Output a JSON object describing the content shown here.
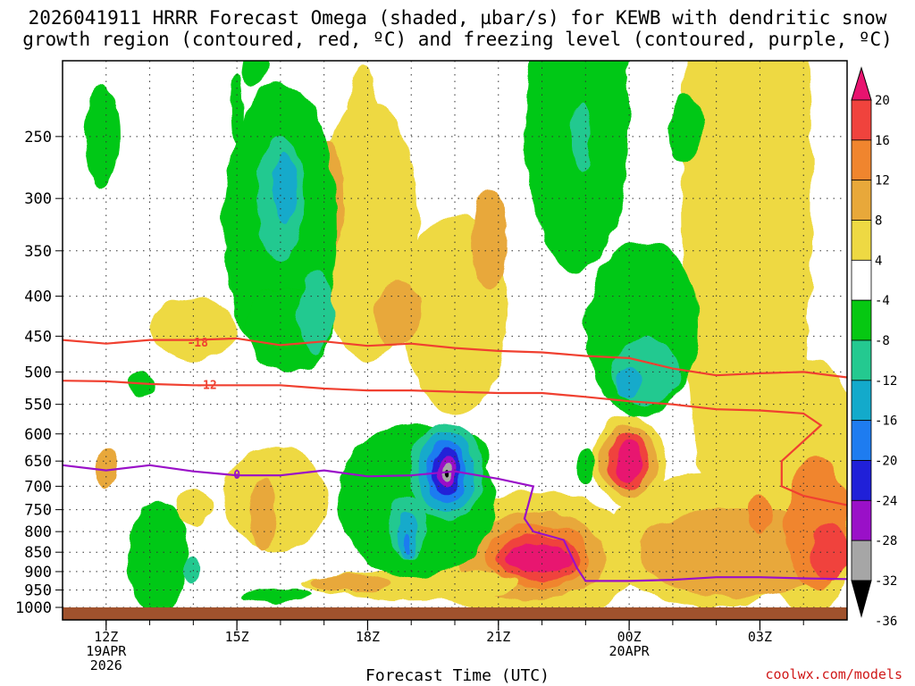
{
  "title_line1": "2026041911 HRRR Forecast Omega (shaded, µbar/s) for KEWB with dendritic snow",
  "title_line2": "growth region (contoured, red, ºC) and freezing level (contoured, purple, ºC)",
  "credit": "coolwx.com/models",
  "chart_data": {
    "type": "heatmap",
    "xlabel": "Forecast Time (UTC)",
    "ylabel": "",
    "y_axis": "pressure (mb), inverted",
    "ylim": [
      1000,
      200
    ],
    "xlim_hours": [
      -1,
      17
    ],
    "y_ticks": [
      250,
      300,
      350,
      400,
      450,
      500,
      550,
      600,
      650,
      700,
      750,
      800,
      850,
      900,
      950,
      1000
    ],
    "x_ticks": [
      {
        "hour": 0,
        "lines": [
          "12Z",
          "19APR",
          "2026"
        ]
      },
      {
        "hour": 3,
        "lines": [
          "15Z"
        ]
      },
      {
        "hour": 6,
        "lines": [
          "18Z"
        ]
      },
      {
        "hour": 9,
        "lines": [
          "21Z"
        ]
      },
      {
        "hour": 12,
        "lines": [
          "00Z",
          "20APR"
        ]
      },
      {
        "hour": 15,
        "lines": [
          "03Z"
        ]
      }
    ],
    "grid": true,
    "colorbar": {
      "labels": [
        "20",
        "16",
        "12",
        "8",
        "4",
        "-4",
        "-8",
        "-12",
        "-16",
        "-20",
        "-24",
        "-28",
        "-32",
        "-36"
      ],
      "bins_top_to_bottom": [
        {
          "color": "#e8136f"
        },
        {
          "color": "#f0433d"
        },
        {
          "color": "#f0852e"
        },
        {
          "color": "#e8a83a"
        },
        {
          "color": "#eed943"
        },
        {
          "color": "#ffffff"
        },
        {
          "color": "#06c812"
        },
        {
          "color": "#24c990"
        },
        {
          "color": "#13aacb"
        },
        {
          "color": "#1e7cf0"
        },
        {
          "color": "#2020d8"
        },
        {
          "color": "#9a10c8"
        },
        {
          "color": "#a6a6a6"
        },
        {
          "color": "#000000"
        }
      ]
    },
    "omega_regions": [
      {
        "level": "-8",
        "color": "#06c812",
        "center": [
          -0.1,
          250
        ],
        "rx": 0.4,
        "ry": 38
      },
      {
        "level": "-8",
        "color": "#06c812",
        "center": [
          3.0,
          230
        ],
        "rx": 0.15,
        "ry": 25
      },
      {
        "level": "-8",
        "color": "#06c812",
        "center": [
          3.4,
          205
        ],
        "rx": 0.3,
        "ry": 10
      },
      {
        "level": "-8",
        "color": "#06c812",
        "center": [
          4.0,
          325
        ],
        "rx": 1.3,
        "ry": 130
      },
      {
        "level": "-8",
        "color": "#06c812",
        "center": [
          4.2,
          440
        ],
        "rx": 1.0,
        "ry": 55
      },
      {
        "level": "-12",
        "color": "#24c990",
        "center": [
          4.0,
          300
        ],
        "rx": 0.55,
        "ry": 55
      },
      {
        "level": "-16",
        "color": "#13aacb",
        "center": [
          4.1,
          290
        ],
        "rx": 0.25,
        "ry": 30
      },
      {
        "level": "-12",
        "color": "#24c990",
        "center": [
          4.8,
          420
        ],
        "rx": 0.4,
        "ry": 50
      },
      {
        "level": "-8",
        "color": "#06c812",
        "center": [
          0.8,
          518
        ],
        "rx": 0.3,
        "ry": 22
      },
      {
        "level": "-8",
        "color": "#06c812",
        "center": [
          1.2,
          860
        ],
        "rx": 0.7,
        "ry": 140
      },
      {
        "level": "-12",
        "color": "#24c990",
        "center": [
          2.0,
          895
        ],
        "rx": 0.15,
        "ry": 40
      },
      {
        "level": "-8",
        "color": "#06c812",
        "center": [
          10.8,
          240
        ],
        "rx": 1.2,
        "ry": 100
      },
      {
        "level": "-12",
        "color": "#24c990",
        "center": [
          10.9,
          250
        ],
        "rx": 0.2,
        "ry": 25
      },
      {
        "level": "-8",
        "color": "#06c812",
        "center": [
          12.3,
          440
        ],
        "rx": 1.3,
        "ry": 110
      },
      {
        "level": "-12",
        "color": "#24c990",
        "center": [
          12.4,
          500
        ],
        "rx": 0.8,
        "ry": 50
      },
      {
        "level": "-16",
        "color": "#13aacb",
        "center": [
          12.0,
          515
        ],
        "rx": 0.3,
        "ry": 25
      },
      {
        "level": "-8",
        "color": "#06c812",
        "center": [
          13.3,
          245
        ],
        "rx": 0.4,
        "ry": 25
      },
      {
        "level": "-8",
        "color": "#06c812",
        "center": [
          7.1,
          730
        ],
        "rx": 1.8,
        "ry": 165
      },
      {
        "level": "-8",
        "color": "#06c812",
        "center": [
          8.3,
          640
        ],
        "rx": 0.5,
        "ry": 40
      },
      {
        "level": "-12",
        "color": "#24c990",
        "center": [
          6.9,
          790
        ],
        "rx": 0.45,
        "ry": 75
      },
      {
        "level": "-16",
        "color": "#13aacb",
        "center": [
          6.9,
          810
        ],
        "rx": 0.25,
        "ry": 55
      },
      {
        "level": "-20",
        "color": "#1e7cf0",
        "center": [
          6.9,
          830
        ],
        "rx": 0.08,
        "ry": 25
      },
      {
        "level": "-12",
        "color": "#24c990",
        "center": [
          7.8,
          670
        ],
        "rx": 0.85,
        "ry": 100
      },
      {
        "level": "-16",
        "color": "#13aacb",
        "center": [
          7.8,
          670
        ],
        "rx": 0.65,
        "ry": 80
      },
      {
        "level": "-20",
        "color": "#1e7cf0",
        "center": [
          7.8,
          670
        ],
        "rx": 0.45,
        "ry": 60
      },
      {
        "level": "-24",
        "color": "#2020d8",
        "center": [
          7.8,
          670
        ],
        "rx": 0.32,
        "ry": 45
      },
      {
        "level": "-28",
        "color": "#9a10c8",
        "center": [
          7.8,
          670
        ],
        "rx": 0.22,
        "ry": 32
      },
      {
        "level": "-32",
        "color": "#a6a6a6",
        "center": [
          7.8,
          670
        ],
        "rx": 0.13,
        "ry": 20
      },
      {
        "level": "-36",
        "color": "#000000",
        "center": [
          7.8,
          670
        ],
        "rx": 0.06,
        "ry": 8
      },
      {
        "level": "-8",
        "color": "#06c812",
        "center": [
          11.0,
          660
        ],
        "rx": 0.25,
        "ry": 35
      },
      {
        "level": "-8",
        "color": "#06c812",
        "center": [
          3.9,
          965
        ],
        "rx": 0.8,
        "ry": 18
      }
    ],
    "rising_regions": [
      {
        "level": "4",
        "color": "#eed943",
        "center": [
          6.0,
          330
        ],
        "rx": 1.2,
        "ry": 120
      },
      {
        "level": "4",
        "color": "#eed943",
        "center": [
          8.0,
          420
        ],
        "rx": 1.2,
        "ry": 120
      },
      {
        "level": "4",
        "color": "#eed943",
        "center": [
          5.9,
          230
        ],
        "rx": 0.3,
        "ry": 30
      },
      {
        "level": "8",
        "color": "#e8a83a",
        "center": [
          5.1,
          300
        ],
        "rx": 0.35,
        "ry": 50
      },
      {
        "level": "12",
        "color": "#f0852e",
        "center": [
          5.0,
          295
        ],
        "rx": 0.1,
        "ry": 25
      },
      {
        "level": "8",
        "color": "#e8a83a",
        "center": [
          8.8,
          340
        ],
        "rx": 0.4,
        "ry": 50
      },
      {
        "level": "8",
        "color": "#e8a83a",
        "center": [
          6.7,
          420
        ],
        "rx": 0.55,
        "ry": 40
      },
      {
        "level": "4",
        "color": "#eed943",
        "center": [
          2.0,
          440
        ],
        "rx": 1.0,
        "ry": 40
      },
      {
        "level": "4",
        "color": "#eed943",
        "center": [
          3.9,
          725
        ],
        "rx": 1.2,
        "ry": 110
      },
      {
        "level": "8",
        "color": "#e8a83a",
        "center": [
          3.6,
          760
        ],
        "rx": 0.3,
        "ry": 80
      },
      {
        "level": "4",
        "color": "#eed943",
        "center": [
          2.0,
          745
        ],
        "rx": 0.4,
        "ry": 40
      },
      {
        "level": "4",
        "color": "#eed943",
        "center": [
          14.7,
          300
        ],
        "rx": 1.5,
        "ry": 250
      },
      {
        "level": "4",
        "color": "#eed943",
        "center": [
          16.1,
          700
        ],
        "rx": 1.3,
        "ry": 250
      },
      {
        "level": "4",
        "color": "#eed943",
        "center": [
          13.8,
          820
        ],
        "rx": 2.3,
        "ry": 160
      },
      {
        "level": "8",
        "color": "#e8a83a",
        "center": [
          14.5,
          850
        ],
        "rx": 2.3,
        "ry": 110
      },
      {
        "level": "12",
        "color": "#f0852e",
        "center": [
          16.3,
          780
        ],
        "rx": 0.7,
        "ry": 150
      },
      {
        "level": "12",
        "color": "#f0852e",
        "center": [
          15.0,
          760
        ],
        "rx": 0.3,
        "ry": 40
      },
      {
        "level": "16",
        "color": "#f0433d",
        "center": [
          16.6,
          850
        ],
        "rx": 0.45,
        "ry": 70
      },
      {
        "level": "4",
        "color": "#eed943",
        "center": [
          9.8,
          860
        ],
        "rx": 2.5,
        "ry": 160
      },
      {
        "level": "8",
        "color": "#e8a83a",
        "center": [
          9.8,
          860
        ],
        "rx": 1.7,
        "ry": 110
      },
      {
        "level": "12",
        "color": "#f0852e",
        "center": [
          9.9,
          860
        ],
        "rx": 1.2,
        "ry": 80
      },
      {
        "level": "16",
        "color": "#f0433d",
        "center": [
          9.9,
          865
        ],
        "rx": 0.95,
        "ry": 60
      },
      {
        "level": "20",
        "color": "#e8136f",
        "center": [
          9.9,
          865
        ],
        "rx": 0.75,
        "ry": 42
      },
      {
        "level": "4",
        "color": "#eed943",
        "center": [
          12.0,
          650
        ],
        "rx": 0.85,
        "ry": 90
      },
      {
        "level": "8",
        "color": "#e8a83a",
        "center": [
          12.0,
          650
        ],
        "rx": 0.65,
        "ry": 70
      },
      {
        "level": "16",
        "color": "#f0433d",
        "center": [
          12.0,
          650
        ],
        "rx": 0.45,
        "ry": 55
      },
      {
        "level": "20",
        "color": "#e8136f",
        "center": [
          12.0,
          650
        ],
        "rx": 0.3,
        "ry": 40
      },
      {
        "level": "4",
        "color": "#eed943",
        "center": [
          7.0,
          935
        ],
        "rx": 2.5,
        "ry": 40
      },
      {
        "level": "8",
        "color": "#e8a83a",
        "center": [
          5.6,
          930
        ],
        "rx": 0.9,
        "ry": 25
      },
      {
        "level": "8",
        "color": "#e8a83a",
        "center": [
          0.0,
          665
        ],
        "rx": 0.25,
        "ry": 40
      }
    ],
    "contours_temperature": [
      {
        "label": "-18",
        "color": "#f04030",
        "points": [
          [
            -1,
            455
          ],
          [
            0,
            460
          ],
          [
            1,
            455
          ],
          [
            2,
            455
          ],
          [
            3,
            453
          ],
          [
            4,
            462
          ],
          [
            5,
            457
          ],
          [
            6,
            463
          ],
          [
            7,
            460
          ],
          [
            8,
            466
          ],
          [
            9,
            470
          ],
          [
            10,
            472
          ],
          [
            11,
            477
          ],
          [
            12,
            480
          ],
          [
            13,
            495
          ],
          [
            14,
            505
          ],
          [
            15,
            502
          ],
          [
            16,
            500
          ],
          [
            17,
            508
          ]
        ],
        "label_at": [
          2.1,
          458
        ]
      },
      {
        "label": "-12",
        "color": "#f04030",
        "points": [
          [
            -1,
            513
          ],
          [
            0,
            514
          ],
          [
            1,
            518
          ],
          [
            2,
            520
          ],
          [
            3,
            520
          ],
          [
            4,
            520
          ],
          [
            5,
            525
          ],
          [
            6,
            528
          ],
          [
            7,
            528
          ],
          [
            8,
            530
          ],
          [
            9,
            532
          ],
          [
            10,
            532
          ],
          [
            11,
            538
          ],
          [
            12,
            545
          ],
          [
            13,
            550
          ],
          [
            14,
            558
          ],
          [
            15,
            560
          ],
          [
            16,
            565
          ],
          [
            16.4,
            585
          ],
          [
            15.5,
            650
          ],
          [
            15.5,
            700
          ],
          [
            16,
            720
          ],
          [
            17,
            740
          ]
        ],
        "label_at": [
          2.3,
          519
        ]
      },
      {
        "label": "0",
        "color": "#9a10c8",
        "points": [
          [
            -1,
            658
          ],
          [
            0,
            668
          ],
          [
            1,
            658
          ],
          [
            2,
            670
          ],
          [
            3,
            678
          ],
          [
            4,
            678
          ],
          [
            5,
            668
          ],
          [
            6,
            680
          ],
          [
            7,
            678
          ],
          [
            8,
            670
          ],
          [
            9,
            685
          ],
          [
            9.8,
            700
          ],
          [
            9.6,
            770
          ],
          [
            9.8,
            800
          ],
          [
            10.5,
            820
          ],
          [
            10.8,
            890
          ],
          [
            11,
            925
          ],
          [
            12,
            925
          ],
          [
            13,
            922
          ],
          [
            14,
            915
          ],
          [
            15,
            915
          ],
          [
            16,
            918
          ],
          [
            17,
            920
          ]
        ],
        "label_at": [
          3.0,
          676
        ]
      }
    ]
  }
}
